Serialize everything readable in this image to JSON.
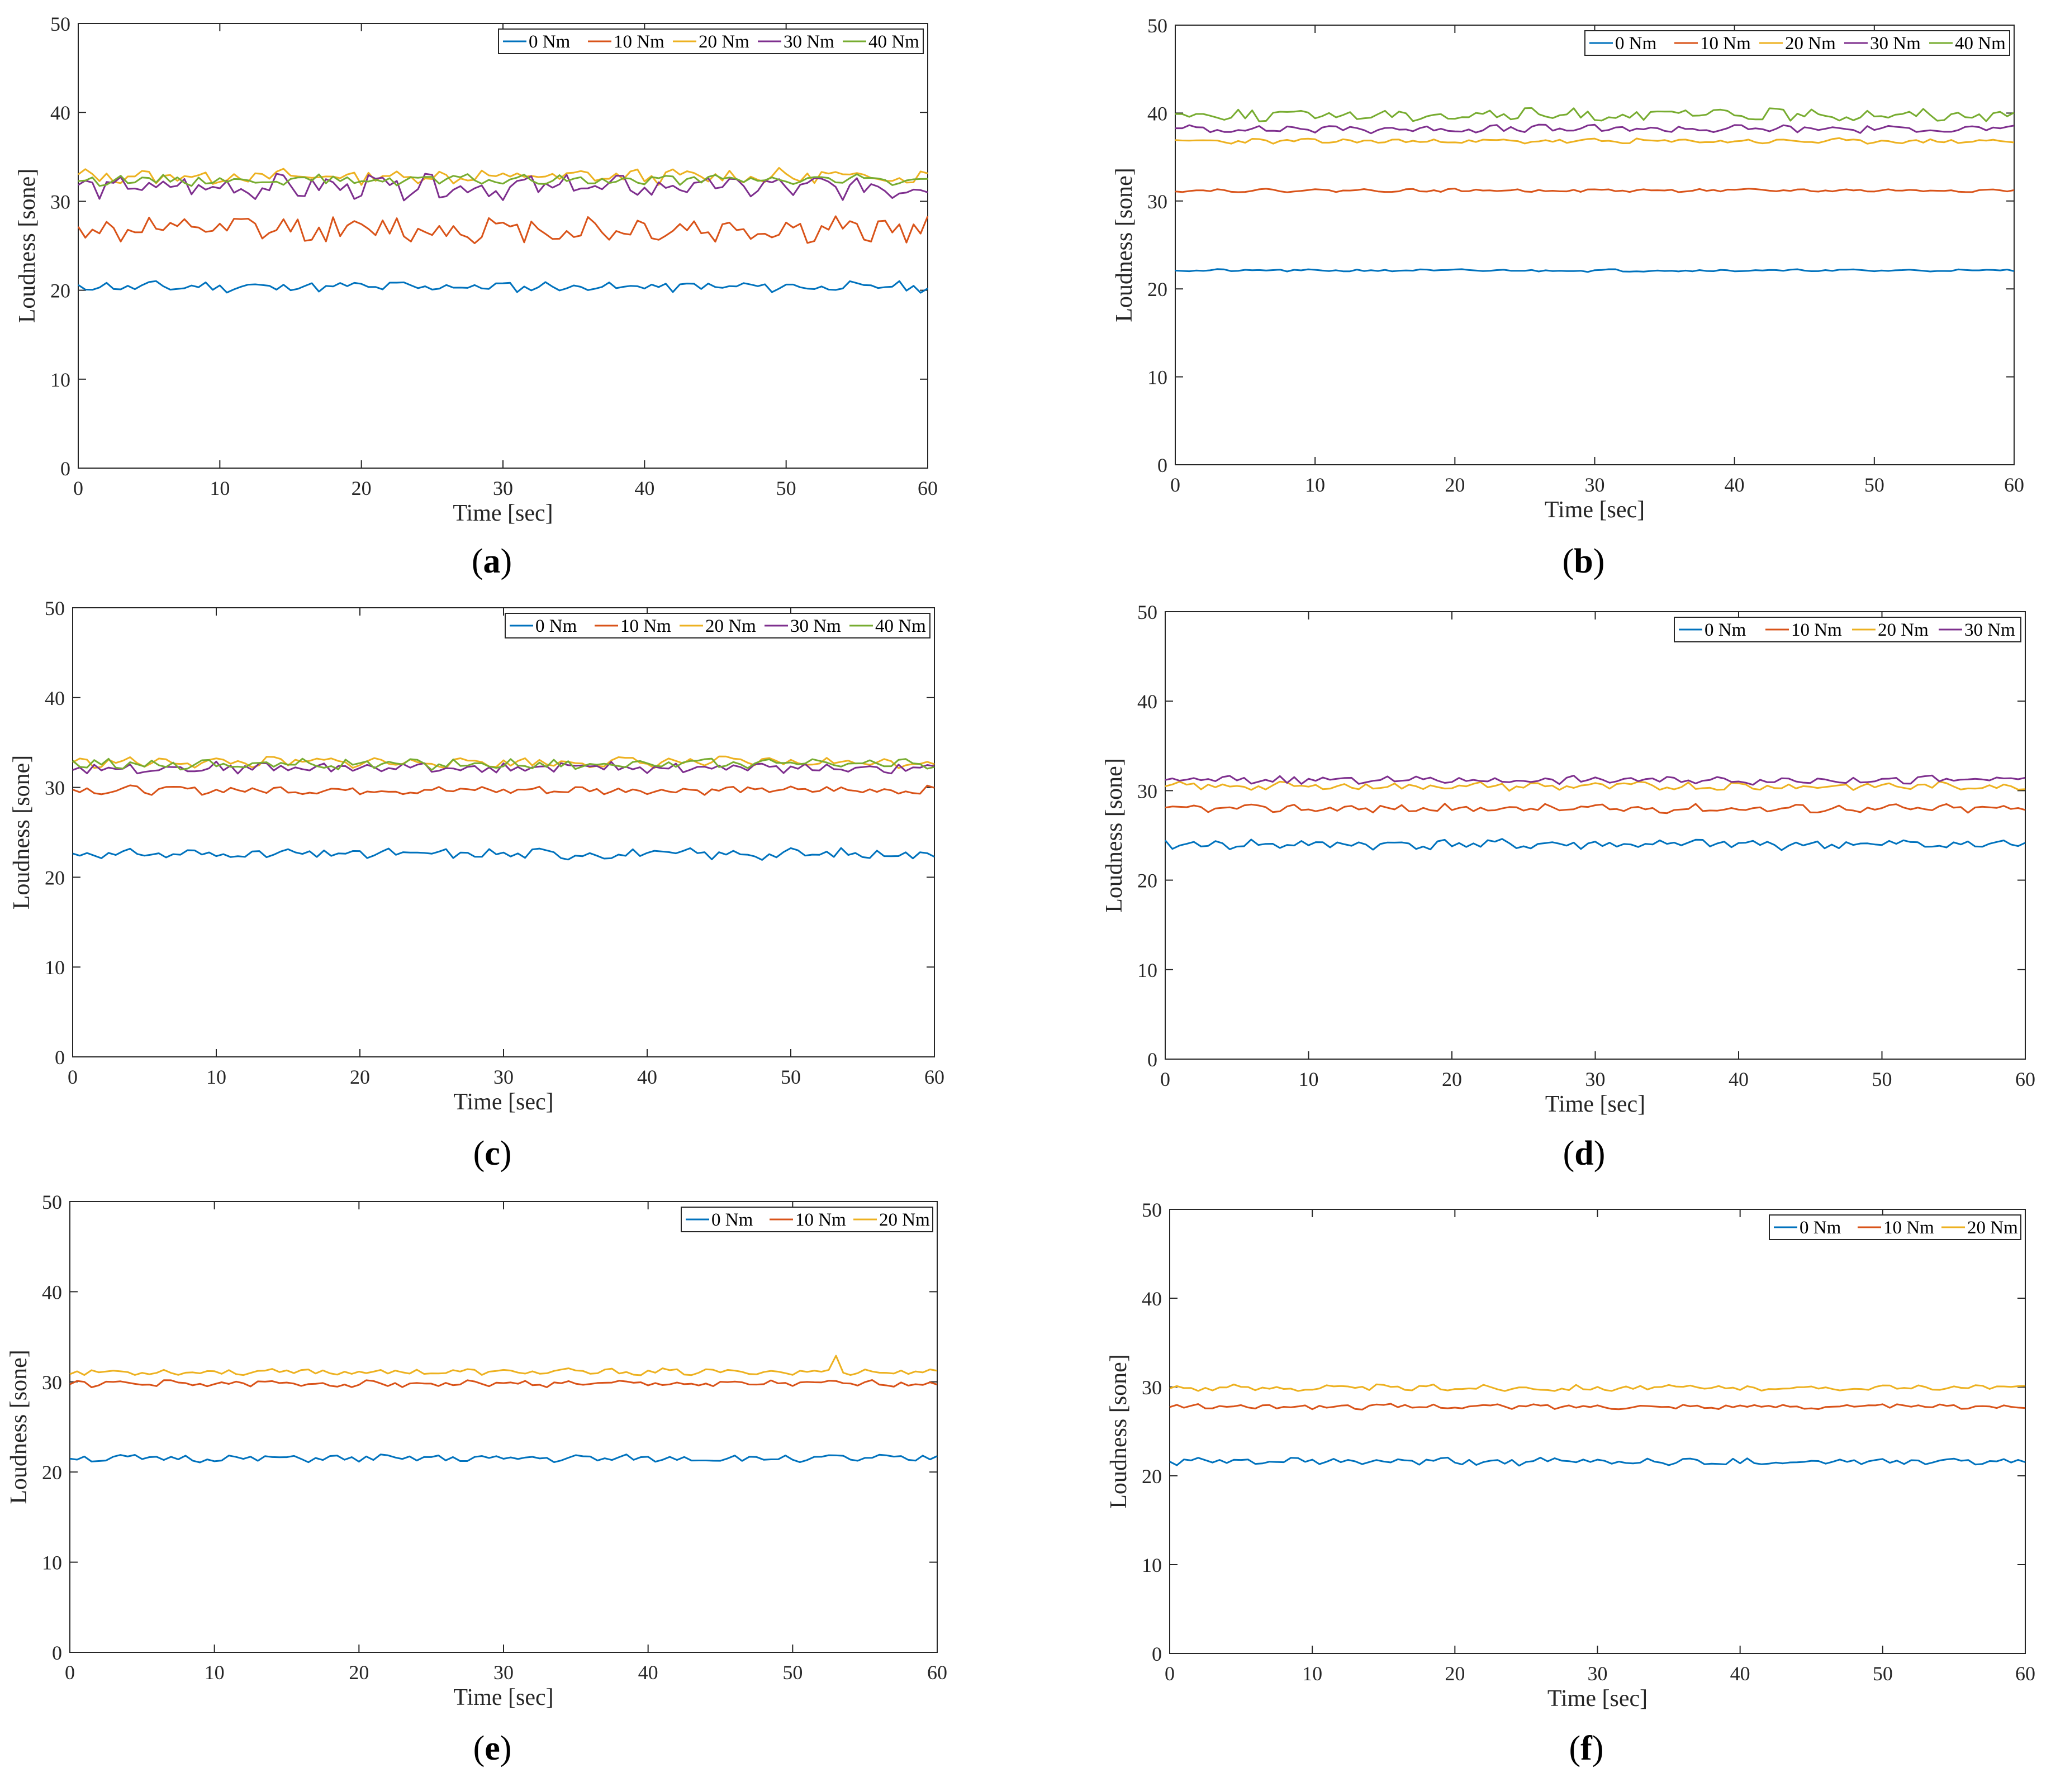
{
  "colors": {
    "0 Nm": "#0072BD",
    "10 Nm": "#D95319",
    "20 Nm": "#EDB120",
    "30 Nm": "#7E2F8E",
    "40 Nm": "#77AC30"
  },
  "chart_data": [
    {
      "id": "a",
      "type": "line",
      "panel_label": "(a)",
      "panel_letter": "a",
      "xlabel": "Time [sec]",
      "ylabel": "Loudness [sone]",
      "xlim": [
        0,
        60
      ],
      "ylim": [
        0,
        50
      ],
      "xticks": [
        0,
        10,
        20,
        30,
        40,
        50,
        60
      ],
      "yticks": [
        0,
        10,
        20,
        30,
        40,
        50
      ],
      "legend_position": "top-right",
      "series": [
        {
          "name": "0 Nm",
          "mean": 20.4,
          "amp": 0.5,
          "seed": 11
        },
        {
          "name": "10 Nm",
          "mean": 26.8,
          "amp": 1.3,
          "seed": 12
        },
        {
          "name": "20 Nm",
          "mean": 32.8,
          "amp": 0.7,
          "seed": 13
        },
        {
          "name": "30 Nm",
          "mean": 31.6,
          "amp": 1.1,
          "seed": 14
        },
        {
          "name": "40 Nm",
          "mean": 32.4,
          "amp": 0.5,
          "seed": 15
        }
      ]
    },
    {
      "id": "b",
      "type": "line",
      "panel_label": "(b)",
      "panel_letter": "b",
      "xlabel": "Time [sec]",
      "ylabel": "Loudness [sone]",
      "xlim": [
        0,
        60
      ],
      "ylim": [
        0,
        50
      ],
      "xticks": [
        0,
        10,
        20,
        30,
        40,
        50,
        60
      ],
      "yticks": [
        0,
        10,
        20,
        30,
        40,
        50
      ],
      "legend_position": "top-right",
      "series": [
        {
          "name": "0 Nm",
          "mean": 22.1,
          "amp": 0.12,
          "seed": 21
        },
        {
          "name": "10 Nm",
          "mean": 31.2,
          "amp": 0.15,
          "seed": 22
        },
        {
          "name": "20 Nm",
          "mean": 36.8,
          "amp": 0.25,
          "seed": 23
        },
        {
          "name": "30 Nm",
          "mean": 38.2,
          "amp": 0.4,
          "seed": 24
        },
        {
          "name": "40 Nm",
          "mean": 39.8,
          "amp": 0.6,
          "seed": 25
        }
      ]
    },
    {
      "id": "c",
      "type": "line",
      "panel_label": "(c)",
      "panel_letter": "c",
      "xlabel": "Time [sec]",
      "ylabel": "Loudness [sone]",
      "xlim": [
        0,
        60
      ],
      "ylim": [
        0,
        50
      ],
      "xticks": [
        0,
        10,
        20,
        30,
        40,
        50,
        60
      ],
      "yticks": [
        0,
        10,
        20,
        30,
        40,
        50
      ],
      "legend_position": "top-right",
      "series": [
        {
          "name": "0 Nm",
          "mean": 22.6,
          "amp": 0.5,
          "seed": 31
        },
        {
          "name": "10 Nm",
          "mean": 29.7,
          "amp": 0.4,
          "seed": 32
        },
        {
          "name": "20 Nm",
          "mean": 32.8,
          "amp": 0.5,
          "seed": 33
        },
        {
          "name": "30 Nm",
          "mean": 32.2,
          "amp": 0.5,
          "seed": 34
        },
        {
          "name": "40 Nm",
          "mean": 32.6,
          "amp": 0.5,
          "seed": 35
        }
      ]
    },
    {
      "id": "d",
      "type": "line",
      "panel_label": "(d)",
      "panel_letter": "d",
      "xlabel": "Time [sec]",
      "ylabel": "Loudness [sone]",
      "xlim": [
        0,
        60
      ],
      "ylim": [
        0,
        50
      ],
      "xticks": [
        0,
        10,
        20,
        30,
        40,
        50,
        60
      ],
      "yticks": [
        0,
        10,
        20,
        30,
        40,
        50
      ],
      "legend_position": "top-right",
      "series": [
        {
          "name": "0 Nm",
          "mean": 24.0,
          "amp": 0.5,
          "seed": 41
        },
        {
          "name": "10 Nm",
          "mean": 28.0,
          "amp": 0.4,
          "seed": 42
        },
        {
          "name": "20 Nm",
          "mean": 30.5,
          "amp": 0.4,
          "seed": 43
        },
        {
          "name": "30 Nm",
          "mean": 31.2,
          "amp": 0.4,
          "seed": 44
        }
      ]
    },
    {
      "id": "e",
      "type": "line",
      "panel_label": "(e)",
      "panel_letter": "e",
      "xlabel": "Time [sec]",
      "ylabel": "Loudness [sone]",
      "xlim": [
        0,
        60
      ],
      "ylim": [
        0,
        50
      ],
      "xticks": [
        0,
        10,
        20,
        30,
        40,
        50,
        60
      ],
      "yticks": [
        0,
        10,
        20,
        30,
        40,
        50
      ],
      "legend_position": "top-right",
      "series": [
        {
          "name": "0 Nm",
          "mean": 21.5,
          "amp": 0.35,
          "seed": 51
        },
        {
          "name": "10 Nm",
          "mean": 29.8,
          "amp": 0.3,
          "seed": 52
        },
        {
          "name": "20 Nm",
          "mean": 31.1,
          "amp": 0.3,
          "seed": 53,
          "spike_at": 53,
          "spike_value": 32.9
        }
      ]
    },
    {
      "id": "f",
      "type": "line",
      "panel_label": "(f)",
      "panel_letter": "f",
      "xlabel": "Time [sec]",
      "ylabel": "Loudness [sone]",
      "xlim": [
        0,
        60
      ],
      "ylim": [
        0,
        50
      ],
      "xticks": [
        0,
        10,
        20,
        30,
        40,
        50,
        60
      ],
      "yticks": [
        0,
        10,
        20,
        30,
        40,
        50
      ],
      "legend_position": "top-right",
      "series": [
        {
          "name": "0 Nm",
          "mean": 21.6,
          "amp": 0.35,
          "seed": 61
        },
        {
          "name": "10 Nm",
          "mean": 27.8,
          "amp": 0.25,
          "seed": 62
        },
        {
          "name": "20 Nm",
          "mean": 29.9,
          "amp": 0.3,
          "seed": 63
        }
      ]
    }
  ]
}
